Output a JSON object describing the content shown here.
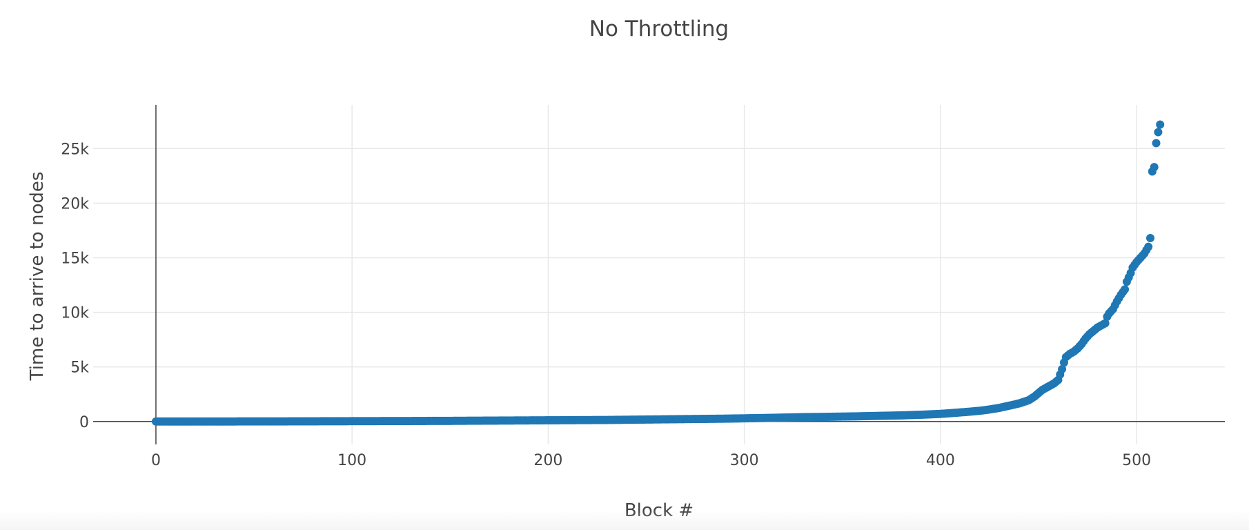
{
  "chart_data": {
    "type": "scatter",
    "title": "No Throttling",
    "xlabel": "Block #",
    "ylabel": "Time to arrive to nodes",
    "xlim": [
      -32,
      545
    ],
    "ylim": [
      -2100,
      29000
    ],
    "xticks": [
      0,
      100,
      200,
      300,
      400,
      500
    ],
    "xtick_labels": [
      "0",
      "100",
      "200",
      "300",
      "400",
      "500"
    ],
    "yticks": [
      0,
      5000,
      10000,
      15000,
      20000,
      25000
    ],
    "ytick_labels": [
      "0",
      "5k",
      "10k",
      "15k",
      "20k",
      "25k"
    ],
    "grid": true,
    "legend": "none",
    "marker_color": "#1f77b4",
    "series": [
      {
        "x": [
          0,
          10,
          20,
          30,
          40,
          50,
          60,
          70,
          80,
          90,
          100,
          110,
          120,
          130,
          140,
          150,
          160,
          170,
          180,
          190,
          200,
          210,
          220,
          230,
          240,
          250,
          260,
          270,
          280,
          290,
          300,
          310,
          320,
          330,
          340,
          350,
          360,
          370,
          380,
          390,
          400,
          405,
          410,
          415,
          420,
          425,
          430,
          435,
          440,
          445,
          448,
          450,
          452,
          455,
          458,
          460,
          461,
          462,
          463,
          464,
          466,
          468,
          470,
          472,
          474,
          476,
          478,
          480,
          482,
          484,
          485,
          486,
          488,
          490,
          492,
          494,
          495,
          497,
          498,
          500,
          502,
          504,
          505,
          506,
          507,
          508,
          509,
          510,
          511,
          512
        ],
        "y": [
          0,
          0,
          0,
          0,
          5,
          10,
          10,
          15,
          20,
          25,
          30,
          35,
          40,
          45,
          55,
          60,
          70,
          80,
          90,
          100,
          110,
          120,
          130,
          140,
          160,
          180,
          200,
          220,
          240,
          260,
          290,
          320,
          360,
          400,
          420,
          450,
          480,
          520,
          560,
          620,
          700,
          760,
          830,
          900,
          980,
          1100,
          1250,
          1450,
          1650,
          1950,
          2300,
          2600,
          2900,
          3200,
          3500,
          3800,
          4300,
          4800,
          5400,
          5900,
          6200,
          6400,
          6700,
          7100,
          7600,
          8000,
          8300,
          8600,
          8800,
          9000,
          9600,
          9900,
          10300,
          11000,
          11600,
          12100,
          12800,
          13600,
          14100,
          14600,
          15000,
          15400,
          15700,
          16000,
          16800,
          22900,
          23300,
          25500,
          26500,
          27200
        ]
      }
    ]
  }
}
